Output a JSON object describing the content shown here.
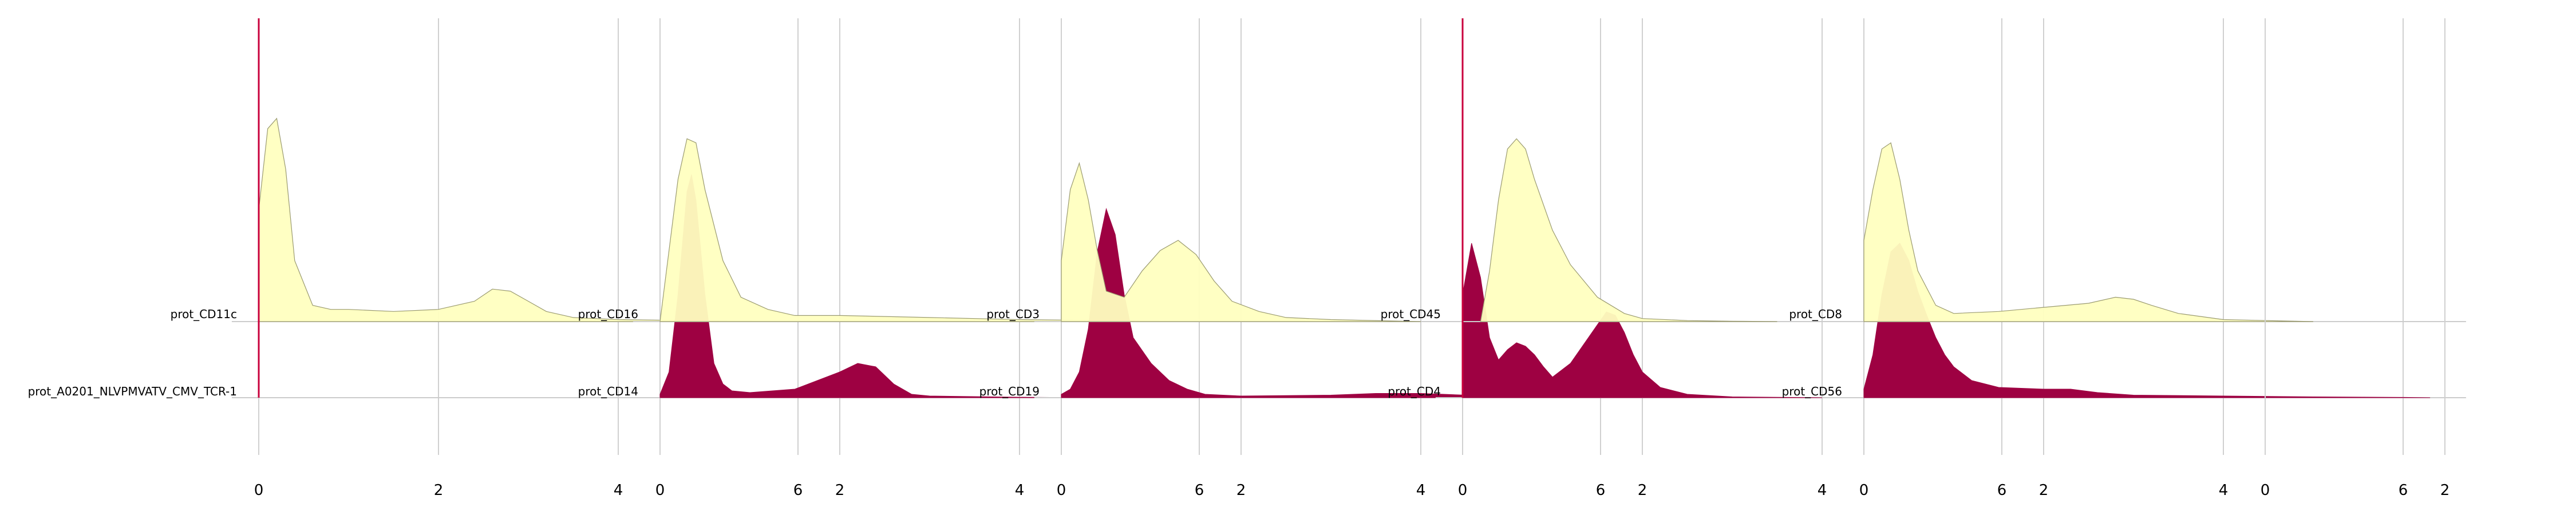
{
  "chart_data": {
    "type": "area",
    "subtype": "ridgeline-density",
    "x_ticks": [
      0,
      2,
      4,
      6
    ],
    "xlim": [
      -0.3,
      6.7
    ],
    "grid": true,
    "legend": "none",
    "colors": {
      "top_fill": "#ffffc0",
      "top_stroke": "#9a9a70",
      "bottom_fill": "#9e0142",
      "gridline": "#d0d0d0",
      "baseline": "#cccccc",
      "marker": "#c8003c"
    },
    "panels": [
      {
        "top": {
          "label": "prot_CD11c",
          "x": [
            0,
            0.1,
            0.2,
            0.3,
            0.4,
            0.6,
            0.8,
            1.0,
            1.5,
            2.0,
            2.4,
            2.6,
            2.8,
            3.0,
            3.2,
            3.5,
            4.0,
            5.0,
            6.0
          ],
          "density": [
            0.55,
            0.95,
            1.0,
            0.75,
            0.3,
            0.08,
            0.06,
            0.06,
            0.05,
            0.06,
            0.1,
            0.16,
            0.15,
            0.1,
            0.05,
            0.02,
            0.01,
            0.004,
            0
          ]
        },
        "bottom": {
          "label": "prot_A0201_NLVPMVATV_CMV_TCR-1",
          "x": [
            0
          ],
          "density": [
            0
          ]
        },
        "marker_at": 0
      },
      {
        "top": {
          "label": "prot_CD16",
          "x": [
            0,
            0.1,
            0.2,
            0.3,
            0.4,
            0.5,
            0.7,
            0.9,
            1.2,
            1.5,
            2.0,
            2.5,
            3.0,
            4.0,
            5.0,
            6.0
          ],
          "density": [
            0,
            0.35,
            0.7,
            0.9,
            0.88,
            0.65,
            0.3,
            0.12,
            0.06,
            0.03,
            0.03,
            0.025,
            0.02,
            0.01,
            0.005,
            0
          ]
        },
        "bottom": {
          "label": "prot_CD14",
          "x": [
            0,
            0.1,
            0.2,
            0.3,
            0.35,
            0.4,
            0.5,
            0.6,
            0.7,
            0.8,
            1.0,
            1.5,
            2.0,
            2.2,
            2.4,
            2.6,
            2.8,
            3.0,
            4.0,
            4.8
          ],
          "density": [
            0.02,
            0.15,
            0.6,
            1.2,
            1.3,
            1.15,
            0.6,
            0.2,
            0.08,
            0.04,
            0.03,
            0.05,
            0.15,
            0.2,
            0.18,
            0.08,
            0.02,
            0.01,
            0.003,
            0
          ]
        }
      },
      {
        "top": {
          "label": "prot_CD3",
          "x": [
            0,
            0.1,
            0.2,
            0.3,
            0.4,
            0.5,
            0.7,
            0.9,
            1.1,
            1.3,
            1.5,
            1.7,
            1.9,
            2.2,
            2.5,
            3.0,
            4.0
          ],
          "density": [
            0.3,
            0.65,
            0.78,
            0.6,
            0.35,
            0.15,
            0.12,
            0.25,
            0.35,
            0.4,
            0.33,
            0.2,
            0.1,
            0.05,
            0.02,
            0.01,
            0
          ]
        },
        "bottom": {
          "label": "prot_CD19",
          "x": [
            0,
            0.1,
            0.2,
            0.3,
            0.4,
            0.5,
            0.6,
            0.7,
            0.8,
            1.0,
            1.2,
            1.4,
            1.6,
            2.0,
            3.0,
            3.5,
            4.0,
            4.5,
            5.0,
            6.0
          ],
          "density": [
            0.02,
            0.05,
            0.15,
            0.4,
            0.85,
            1.1,
            0.95,
            0.6,
            0.35,
            0.2,
            0.1,
            0.05,
            0.02,
            0.01,
            0.015,
            0.025,
            0.025,
            0.015,
            0.008,
            0
          ]
        }
      },
      {
        "top": {
          "label": "prot_CD45",
          "x": [
            0.2,
            0.3,
            0.4,
            0.5,
            0.6,
            0.7,
            0.8,
            1.0,
            1.2,
            1.5,
            1.8,
            2.0,
            2.5,
            3.0,
            3.5
          ],
          "density": [
            0,
            0.25,
            0.6,
            0.85,
            0.9,
            0.85,
            0.7,
            0.45,
            0.28,
            0.12,
            0.04,
            0.015,
            0.005,
            0.002,
            0
          ]
        },
        "bottom": {
          "label": "prot_CD4",
          "x": [
            0,
            0.1,
            0.2,
            0.3,
            0.4,
            0.5,
            0.6,
            0.7,
            0.8,
            0.9,
            1.0,
            1.2,
            1.4,
            1.6,
            1.7,
            1.8,
            1.9,
            2.0,
            2.2,
            2.5,
            3.0,
            4.0
          ],
          "density": [
            0.6,
            0.9,
            0.7,
            0.35,
            0.22,
            0.28,
            0.32,
            0.3,
            0.25,
            0.18,
            0.12,
            0.2,
            0.35,
            0.5,
            0.48,
            0.38,
            0.25,
            0.15,
            0.06,
            0.02,
            0.005,
            0
          ]
        },
        "marker_at": 0
      },
      {
        "top": {
          "label": "prot_CD8",
          "x": [
            0,
            0.1,
            0.2,
            0.3,
            0.4,
            0.5,
            0.6,
            0.8,
            1.0,
            1.5,
            2.0,
            2.5,
            2.8,
            3.0,
            3.2,
            3.5,
            4.0,
            5.0
          ],
          "density": [
            0.4,
            0.65,
            0.85,
            0.88,
            0.7,
            0.45,
            0.25,
            0.08,
            0.04,
            0.05,
            0.07,
            0.09,
            0.12,
            0.11,
            0.08,
            0.04,
            0.01,
            0
          ]
        },
        "bottom": {
          "label": "prot_CD56",
          "x": [
            0,
            0.1,
            0.2,
            0.3,
            0.4,
            0.5,
            0.6,
            0.7,
            0.8,
            0.9,
            1.0,
            1.2,
            1.5,
            2.0,
            2.3,
            2.6,
            3.0,
            4.0,
            5.0,
            6.0,
            6.3
          ],
          "density": [
            0.05,
            0.25,
            0.6,
            0.85,
            0.9,
            0.8,
            0.62,
            0.48,
            0.35,
            0.25,
            0.18,
            0.1,
            0.06,
            0.05,
            0.05,
            0.03,
            0.015,
            0.01,
            0.005,
            0.002,
            0
          ]
        }
      },
      {
        "top": null,
        "bottom": null
      }
    ]
  }
}
